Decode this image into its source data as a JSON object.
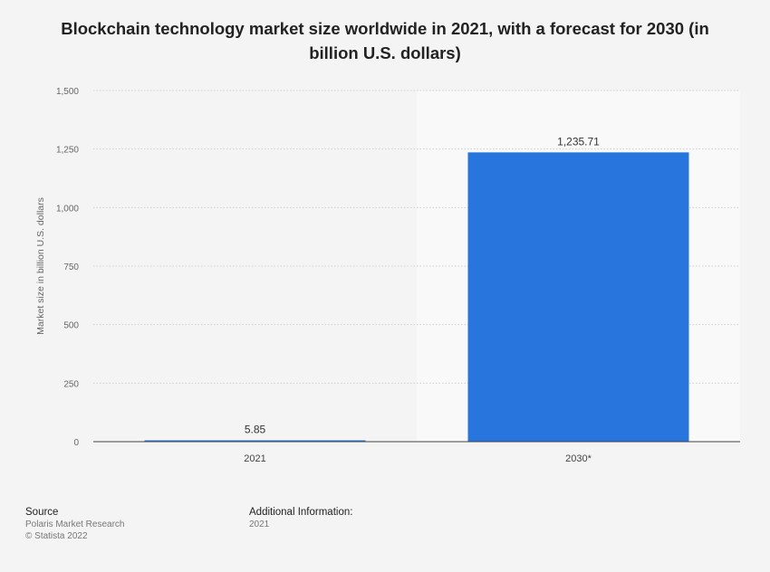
{
  "chart_data": {
    "type": "bar",
    "title": "Blockchain technology market size worldwide in 2021, with a forecast for 2030 (in billion U.S. dollars)",
    "xlabel": "",
    "ylabel": "Market size in billion U.S. dollars",
    "categories": [
      "2021",
      "2030*"
    ],
    "values": [
      5.85,
      1235.71
    ],
    "value_labels": [
      "5.85",
      "1,235.71"
    ],
    "ylim": [
      0,
      1500
    ],
    "yticks": [
      0,
      250,
      500,
      750,
      1000,
      1250,
      1500
    ],
    "ytick_labels": [
      "0",
      "250",
      "500",
      "750",
      "1,000",
      "1,250",
      "1,500"
    ],
    "grid": true,
    "forecast_category": "2030*",
    "colors": {
      "bar": "#2876dd",
      "background": "#f4f4f4",
      "forecast_shade": "#f9f9f9"
    }
  },
  "footer": {
    "source_heading": "Source",
    "source_lines": [
      "Polaris Market Research",
      "© Statista 2022"
    ],
    "additional_heading": "Additional Information:",
    "additional_lines": [
      "2021"
    ]
  }
}
